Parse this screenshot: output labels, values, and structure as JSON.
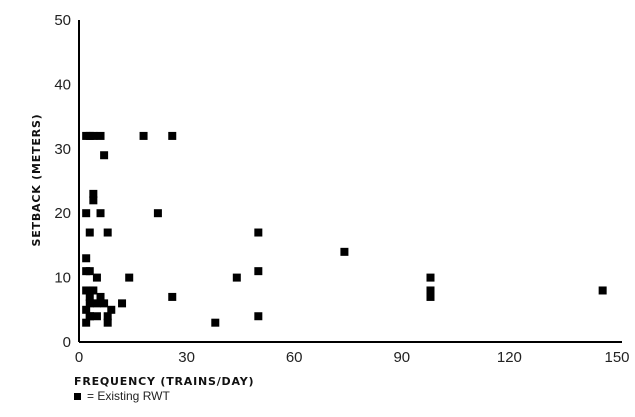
{
  "chart_data": {
    "type": "scatter",
    "xlabel": "FREQUENCY (TRAINS/DAY)",
    "ylabel": "SETBACK (METERS)",
    "xlim": [
      0,
      150
    ],
    "ylim": [
      0,
      50
    ],
    "xticks": [
      "0",
      "30",
      "60",
      "90",
      "120",
      "150"
    ],
    "yticks": [
      "0",
      "10",
      "20",
      "30",
      "40",
      "50"
    ],
    "grid": false,
    "legend_position": "bottom-left",
    "series": [
      {
        "name": "= Existing RWT",
        "color": "#000000",
        "marker": "square",
        "x": [
          2,
          3,
          4,
          6,
          18,
          26,
          7,
          4,
          4,
          2,
          6,
          22,
          3,
          8,
          50,
          2,
          74,
          2,
          3,
          5,
          14,
          44,
          50,
          98,
          98,
          98,
          146,
          2,
          3,
          4,
          6,
          26,
          3,
          5,
          7,
          12,
          3,
          9,
          2,
          3,
          5,
          8,
          38,
          50,
          2,
          8,
          3
        ],
        "y": [
          32,
          32,
          32,
          32,
          32,
          32,
          29,
          23,
          22,
          20,
          20,
          20,
          17,
          17,
          17,
          13,
          14,
          11,
          11,
          10,
          10,
          10,
          11,
          10,
          8,
          7,
          8,
          8,
          8,
          8,
          7,
          7,
          7,
          6,
          6,
          6,
          6,
          5,
          5,
          4,
          4,
          4,
          3,
          4,
          3,
          3,
          4
        ]
      }
    ]
  }
}
